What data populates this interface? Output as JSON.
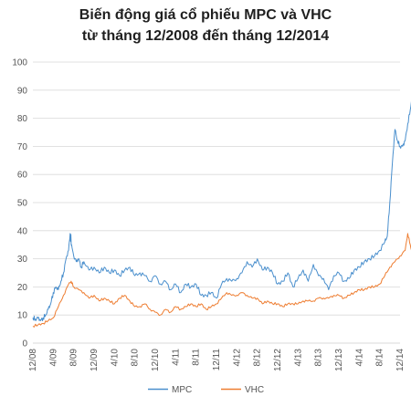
{
  "chart_data": {
    "type": "line",
    "title_line1": "Biến động giá cổ phiếu MPC và VHC",
    "title_line2": "từ tháng 12/2008 đến tháng 12/2014",
    "xlabel": "",
    "ylabel": "",
    "ylim": [
      0,
      100
    ],
    "yticks": [
      "0",
      "10",
      "20",
      "30",
      "40",
      "50",
      "60",
      "70",
      "80",
      "90",
      "100"
    ],
    "xlim": [
      "12/2008",
      "12/2014"
    ],
    "xticks": [
      "12/08",
      "4/09",
      "8/09",
      "12/09",
      "4/10",
      "8/10",
      "12/10",
      "4/11",
      "8/11",
      "12/11",
      "4/12",
      "8/12",
      "12/12",
      "4/13",
      "8/13",
      "12/13",
      "4/14",
      "8/14",
      "12/14"
    ],
    "grid": "horizontal",
    "legend": "bottom",
    "colors": {
      "MPC": "#4a8fcd",
      "VHC": "#ee7d31",
      "grid": "#d9d9d9"
    },
    "series": [
      {
        "name": "MPC",
        "points": [
          [
            0,
            9
          ],
          [
            0.5,
            8.5
          ],
          [
            1,
            9
          ],
          [
            1.5,
            8
          ],
          [
            2,
            9
          ],
          [
            2.5,
            10
          ],
          [
            3,
            12
          ],
          [
            3.5,
            14
          ],
          [
            4,
            18
          ],
          [
            4.5,
            20
          ],
          [
            5,
            19
          ],
          [
            5.5,
            22
          ],
          [
            6,
            25
          ],
          [
            6.5,
            30
          ],
          [
            7,
            33
          ],
          [
            7.3,
            39
          ],
          [
            7.6,
            35
          ],
          [
            8,
            31
          ],
          [
            8.5,
            29
          ],
          [
            9,
            30
          ],
          [
            9.5,
            27
          ],
          [
            10,
            29
          ],
          [
            11,
            26
          ],
          [
            12,
            27
          ],
          [
            13,
            25
          ],
          [
            14,
            27
          ],
          [
            15,
            25
          ],
          [
            16,
            26
          ],
          [
            17,
            24
          ],
          [
            18,
            26
          ],
          [
            19,
            27
          ],
          [
            20,
            24
          ],
          [
            21,
            25
          ],
          [
            22,
            24
          ],
          [
            23,
            22
          ],
          [
            24,
            24
          ],
          [
            25,
            21
          ],
          [
            26,
            22
          ],
          [
            27,
            19
          ],
          [
            28,
            21
          ],
          [
            29,
            18
          ],
          [
            30,
            21
          ],
          [
            31,
            20
          ],
          [
            32,
            21
          ],
          [
            33,
            17
          ],
          [
            34,
            17
          ],
          [
            35,
            18
          ],
          [
            36,
            16
          ],
          [
            37,
            21
          ],
          [
            38,
            23
          ],
          [
            39,
            22
          ],
          [
            40,
            23
          ],
          [
            41,
            25
          ],
          [
            42,
            29
          ],
          [
            43,
            27
          ],
          [
            44,
            30
          ],
          [
            45,
            26
          ],
          [
            46,
            27
          ],
          [
            47,
            25
          ],
          [
            48,
            21
          ],
          [
            49,
            22
          ],
          [
            50,
            25
          ],
          [
            51,
            20
          ],
          [
            52,
            23
          ],
          [
            53,
            26
          ],
          [
            54,
            22
          ],
          [
            55,
            28
          ],
          [
            56,
            24
          ],
          [
            57,
            23
          ],
          [
            58,
            19
          ],
          [
            59,
            24
          ],
          [
            60,
            25
          ],
          [
            61,
            22
          ],
          [
            62,
            23
          ],
          [
            63,
            26
          ],
          [
            64,
            27
          ],
          [
            65,
            29
          ],
          [
            66,
            30
          ],
          [
            67,
            31
          ],
          [
            68,
            33
          ],
          [
            69,
            36
          ],
          [
            69.5,
            38
          ],
          [
            70,
            50
          ],
          [
            70.5,
            64
          ],
          [
            71,
            76
          ],
          [
            71.5,
            72
          ],
          [
            72,
            70
          ],
          [
            72.5,
            70
          ],
          [
            73,
            72
          ],
          [
            73.5,
            78
          ],
          [
            74,
            83
          ],
          [
            74.5,
            90
          ],
          [
            75,
            96
          ],
          [
            75.4,
            94
          ],
          [
            75.7,
            88
          ],
          [
            76,
            78
          ],
          [
            76.3,
            75
          ],
          [
            76.6,
            80
          ]
        ]
      },
      {
        "name": "VHC",
        "points": [
          [
            0,
            6
          ],
          [
            1,
            6.5
          ],
          [
            2,
            7
          ],
          [
            3,
            8
          ],
          [
            4,
            9
          ],
          [
            5,
            13
          ],
          [
            6,
            17
          ],
          [
            7,
            21
          ],
          [
            7.5,
            22
          ],
          [
            8,
            20
          ],
          [
            9,
            19
          ],
          [
            10,
            18
          ],
          [
            11,
            16
          ],
          [
            12,
            17
          ],
          [
            13,
            15
          ],
          [
            14,
            16
          ],
          [
            15,
            15
          ],
          [
            16,
            14
          ],
          [
            17,
            16
          ],
          [
            18,
            17
          ],
          [
            19,
            15
          ],
          [
            20,
            13
          ],
          [
            21,
            13
          ],
          [
            22,
            14
          ],
          [
            23,
            12
          ],
          [
            24,
            11
          ],
          [
            25,
            10
          ],
          [
            26,
            12
          ],
          [
            27,
            11
          ],
          [
            28,
            13
          ],
          [
            29,
            12
          ],
          [
            30,
            13
          ],
          [
            31,
            14
          ],
          [
            32,
            13
          ],
          [
            33,
            14
          ],
          [
            34,
            12
          ],
          [
            35,
            13
          ],
          [
            36,
            14
          ],
          [
            37,
            16
          ],
          [
            38,
            18
          ],
          [
            39,
            17
          ],
          [
            40,
            17
          ],
          [
            41,
            18
          ],
          [
            42,
            17
          ],
          [
            43,
            16
          ],
          [
            44,
            16
          ],
          [
            45,
            14
          ],
          [
            46,
            15
          ],
          [
            47,
            14
          ],
          [
            48,
            14
          ],
          [
            49,
            13
          ],
          [
            50,
            14
          ],
          [
            51,
            14
          ],
          [
            52,
            14
          ],
          [
            53,
            15
          ],
          [
            54,
            15
          ],
          [
            55,
            15
          ],
          [
            56,
            16
          ],
          [
            57,
            16
          ],
          [
            58,
            16
          ],
          [
            59,
            17
          ],
          [
            60,
            17
          ],
          [
            61,
            16
          ],
          [
            62,
            17
          ],
          [
            63,
            18
          ],
          [
            64,
            19
          ],
          [
            65,
            19
          ],
          [
            66,
            20
          ],
          [
            67,
            20
          ],
          [
            68,
            21
          ],
          [
            69,
            24
          ],
          [
            70,
            27
          ],
          [
            71,
            29
          ],
          [
            72,
            31
          ],
          [
            73,
            33
          ],
          [
            73.5,
            39
          ],
          [
            74,
            35
          ],
          [
            74.5,
            31
          ],
          [
            75,
            36
          ],
          [
            75.5,
            39
          ],
          [
            76,
            37
          ],
          [
            76.6,
            38
          ]
        ]
      }
    ]
  }
}
